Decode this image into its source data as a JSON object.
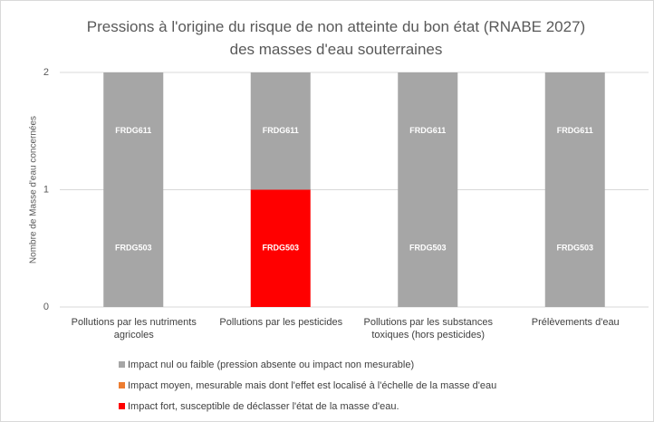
{
  "chart_data": {
    "type": "stacked_bar",
    "title": "Pressions à l'origine du risque de non atteinte du bon état (RNABE 2027) des masses d'eau souterraines",
    "y_label": "Nombre de Masse d'eau concernées",
    "categories": [
      "Pollutions par les nutriments agricoles",
      "Pollutions par les pesticides",
      "Pollutions par les substances toxiques (hors pesticides)",
      "Prélèvements d'eau"
    ],
    "series": [
      {
        "name": "FRDG503",
        "values": [
          1,
          1,
          1,
          1
        ],
        "colors": [
          "#a6a6a6",
          "#ff0000",
          "#a6a6a6",
          "#a6a6a6"
        ]
      },
      {
        "name": "FRDG611",
        "values": [
          1,
          1,
          1,
          1
        ],
        "colors": [
          "#a6a6a6",
          "#a6a6a6",
          "#a6a6a6",
          "#a6a6a6"
        ]
      }
    ],
    "legend": [
      {
        "label": "Impact nul ou faible (pression absente ou impact non mesurable)",
        "color": "#a6a6a6"
      },
      {
        "label": "Impact moyen, mesurable mais dont l'effet est localisé à l'échelle de la masse d'eau",
        "color": "#ed7d31"
      },
      {
        "label": "Impact fort, susceptible de déclasser l'état de la masse d'eau.",
        "color": "#ff0000"
      }
    ],
    "ylim": [
      0,
      2
    ],
    "yticks": [
      0,
      1,
      2
    ],
    "grid": true
  }
}
